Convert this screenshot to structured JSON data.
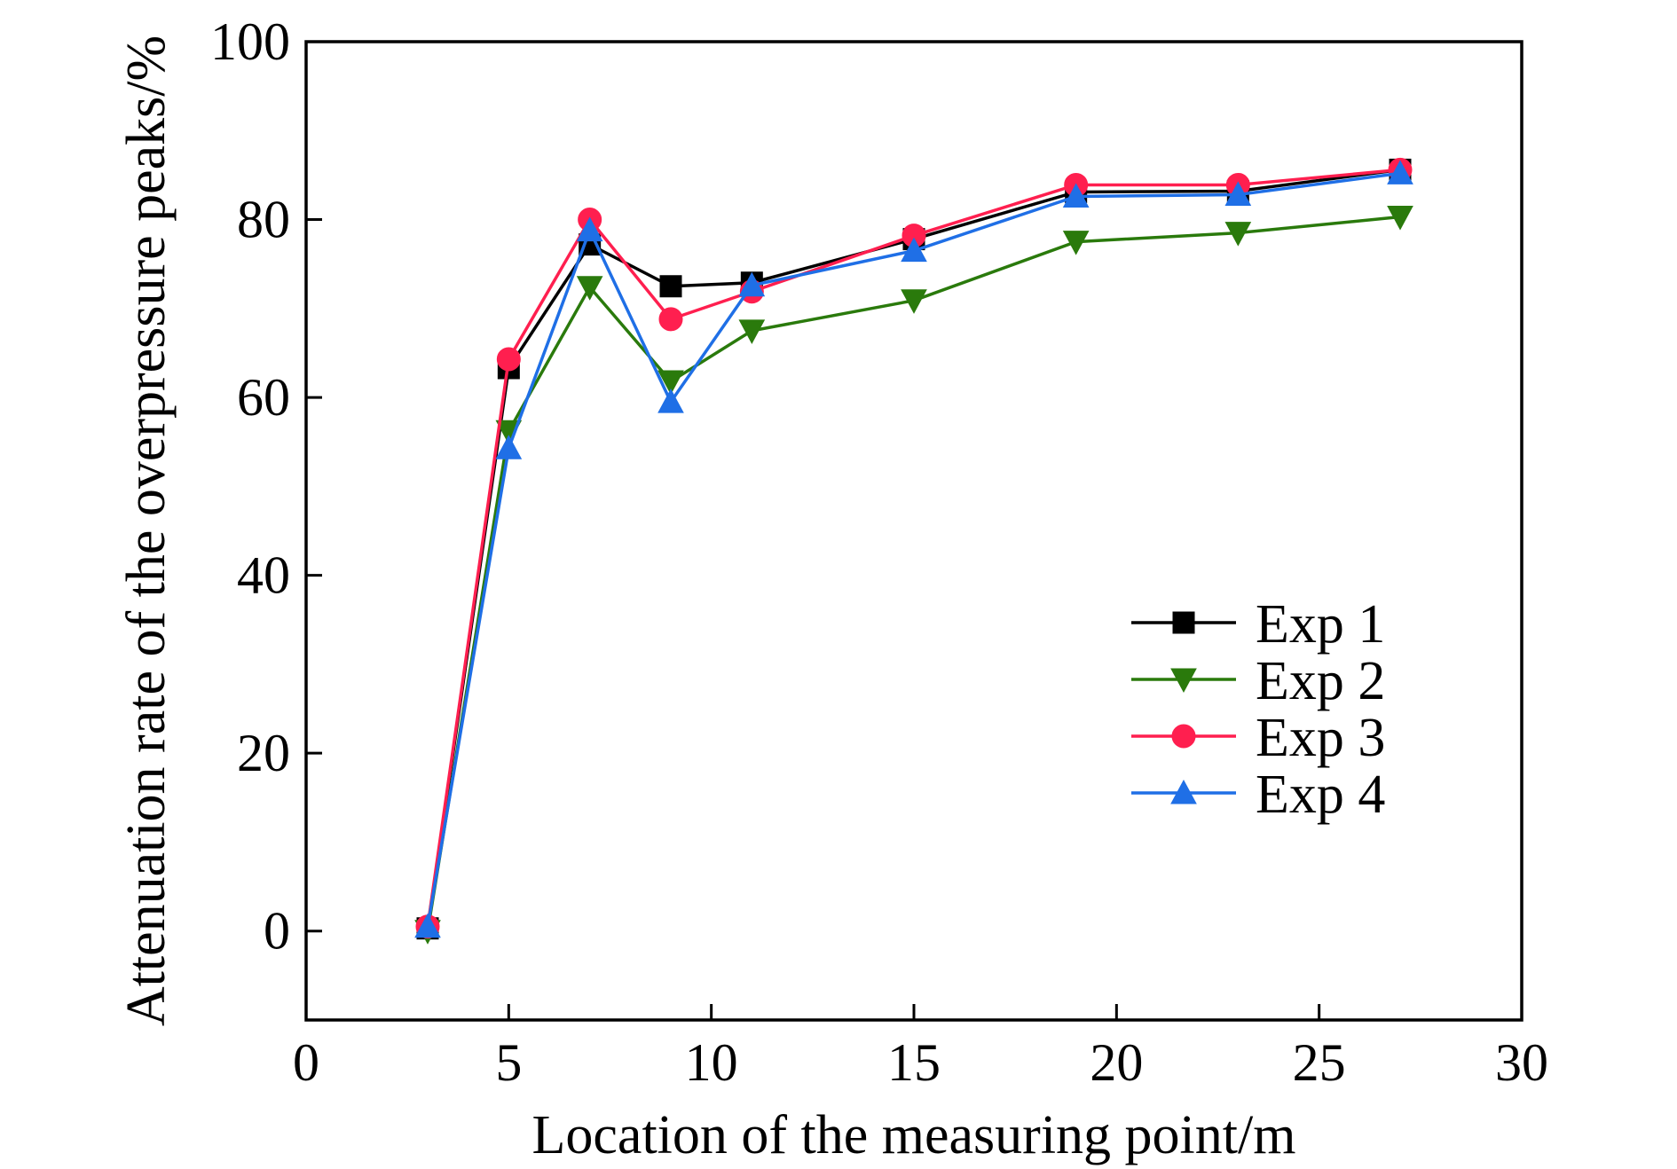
{
  "chart_data": {
    "type": "line",
    "xlabel": "Location of the measuring point/m",
    "ylabel": "Attenuation rate of the overpressure peaks/%",
    "xlim": [
      0,
      30
    ],
    "ylim": [
      -10,
      100
    ],
    "xticks": [
      0,
      5,
      10,
      15,
      20,
      25,
      30
    ],
    "yticks": [
      0,
      20,
      40,
      60,
      80,
      100
    ],
    "x": [
      3,
      5,
      7,
      9,
      11,
      15,
      19,
      23,
      27
    ],
    "grid": false,
    "legend_position": "right-center",
    "series": [
      {
        "name": "Exp 1",
        "color": "#000000",
        "marker": "square",
        "values": [
          0.3,
          63.3,
          77.2,
          72.5,
          72.9,
          77.8,
          83.1,
          83.2,
          85.6
        ]
      },
      {
        "name": "Exp 2",
        "color": "#2a7a0c",
        "marker": "triangle-down",
        "values": [
          0.0,
          56.2,
          72.4,
          61.8,
          67.5,
          70.9,
          77.5,
          78.5,
          80.3
        ]
      },
      {
        "name": "Exp 3",
        "color": "#ff1f4f",
        "marker": "circle",
        "values": [
          0.5,
          64.3,
          80.0,
          68.8,
          71.9,
          78.2,
          83.9,
          83.9,
          85.6
        ]
      },
      {
        "name": "Exp 4",
        "color": "#1f6fe6",
        "marker": "triangle-up",
        "values": [
          0.5,
          54.3,
          78.8,
          59.5,
          72.6,
          76.5,
          82.6,
          82.8,
          85.2
        ]
      }
    ]
  }
}
